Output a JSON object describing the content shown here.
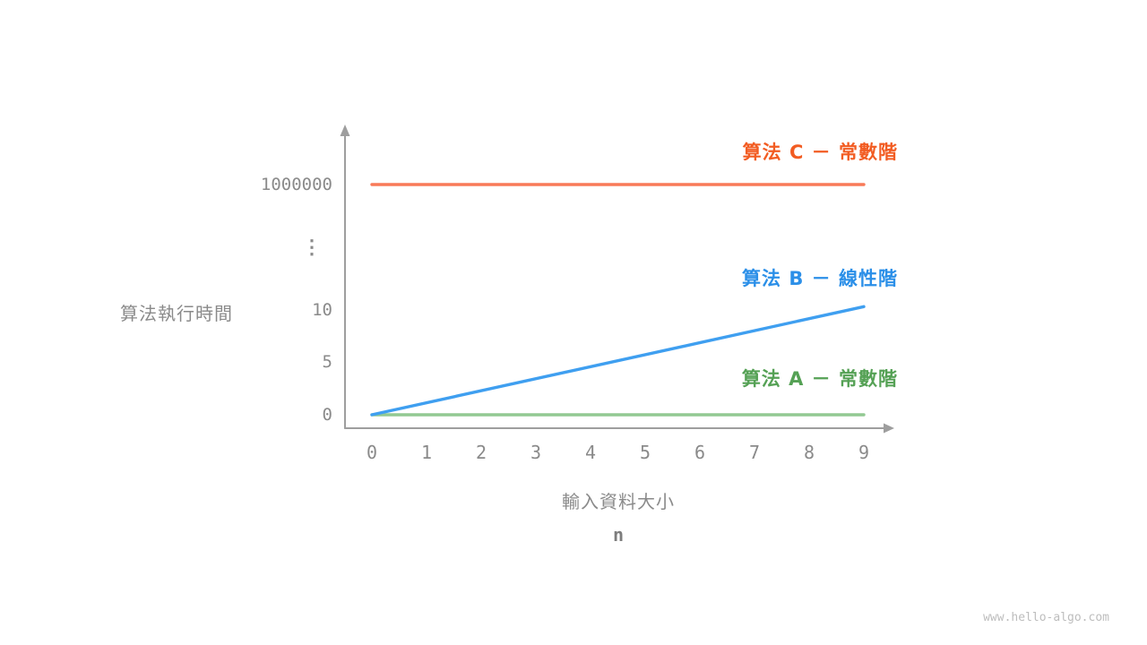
{
  "page": {
    "watermark": "www.hello-algo.com"
  },
  "chart_data": {
    "type": "line",
    "title": "",
    "ylabel": "算法執行時間",
    "xlabel": "輸入資料大小",
    "xlabel_variable": "n",
    "x_ticks": [
      "0",
      "1",
      "2",
      "3",
      "4",
      "5",
      "6",
      "7",
      "8",
      "9"
    ],
    "y_ticks": [
      {
        "label": "0",
        "value": 0
      },
      {
        "label": "5",
        "value": 5
      },
      {
        "label": "10",
        "value": 10
      },
      {
        "label": "⋮",
        "value": null
      },
      {
        "label": "1000000",
        "value": 1000000
      }
    ],
    "y_axis_broken": true,
    "grid": false,
    "legend_position": "inline-right",
    "xlim": [
      0,
      9
    ],
    "series": [
      {
        "id": "A",
        "name": "算法 A － 常數階",
        "complexity": "constant",
        "x": [
          0,
          9
        ],
        "y": [
          0,
          0
        ],
        "line_color": "#92c992",
        "label_color": "#55a155"
      },
      {
        "id": "B",
        "name": "算法 B － 線性階",
        "complexity": "linear",
        "x": [
          0,
          9
        ],
        "y": [
          0,
          10.3
        ],
        "line_color": "#3f9ff0",
        "label_color": "#2b8fe8"
      },
      {
        "id": "C",
        "name": "算法 C － 常數階",
        "complexity": "constant",
        "x": [
          0,
          9
        ],
        "y": [
          1000000,
          1000000
        ],
        "line_color": "#f87a58",
        "label_color": "#f25c22"
      }
    ],
    "colors": {
      "axis": "#9e9e9e",
      "tick_text": "#8a8a8a",
      "watermark": "#bdbdbd"
    }
  }
}
